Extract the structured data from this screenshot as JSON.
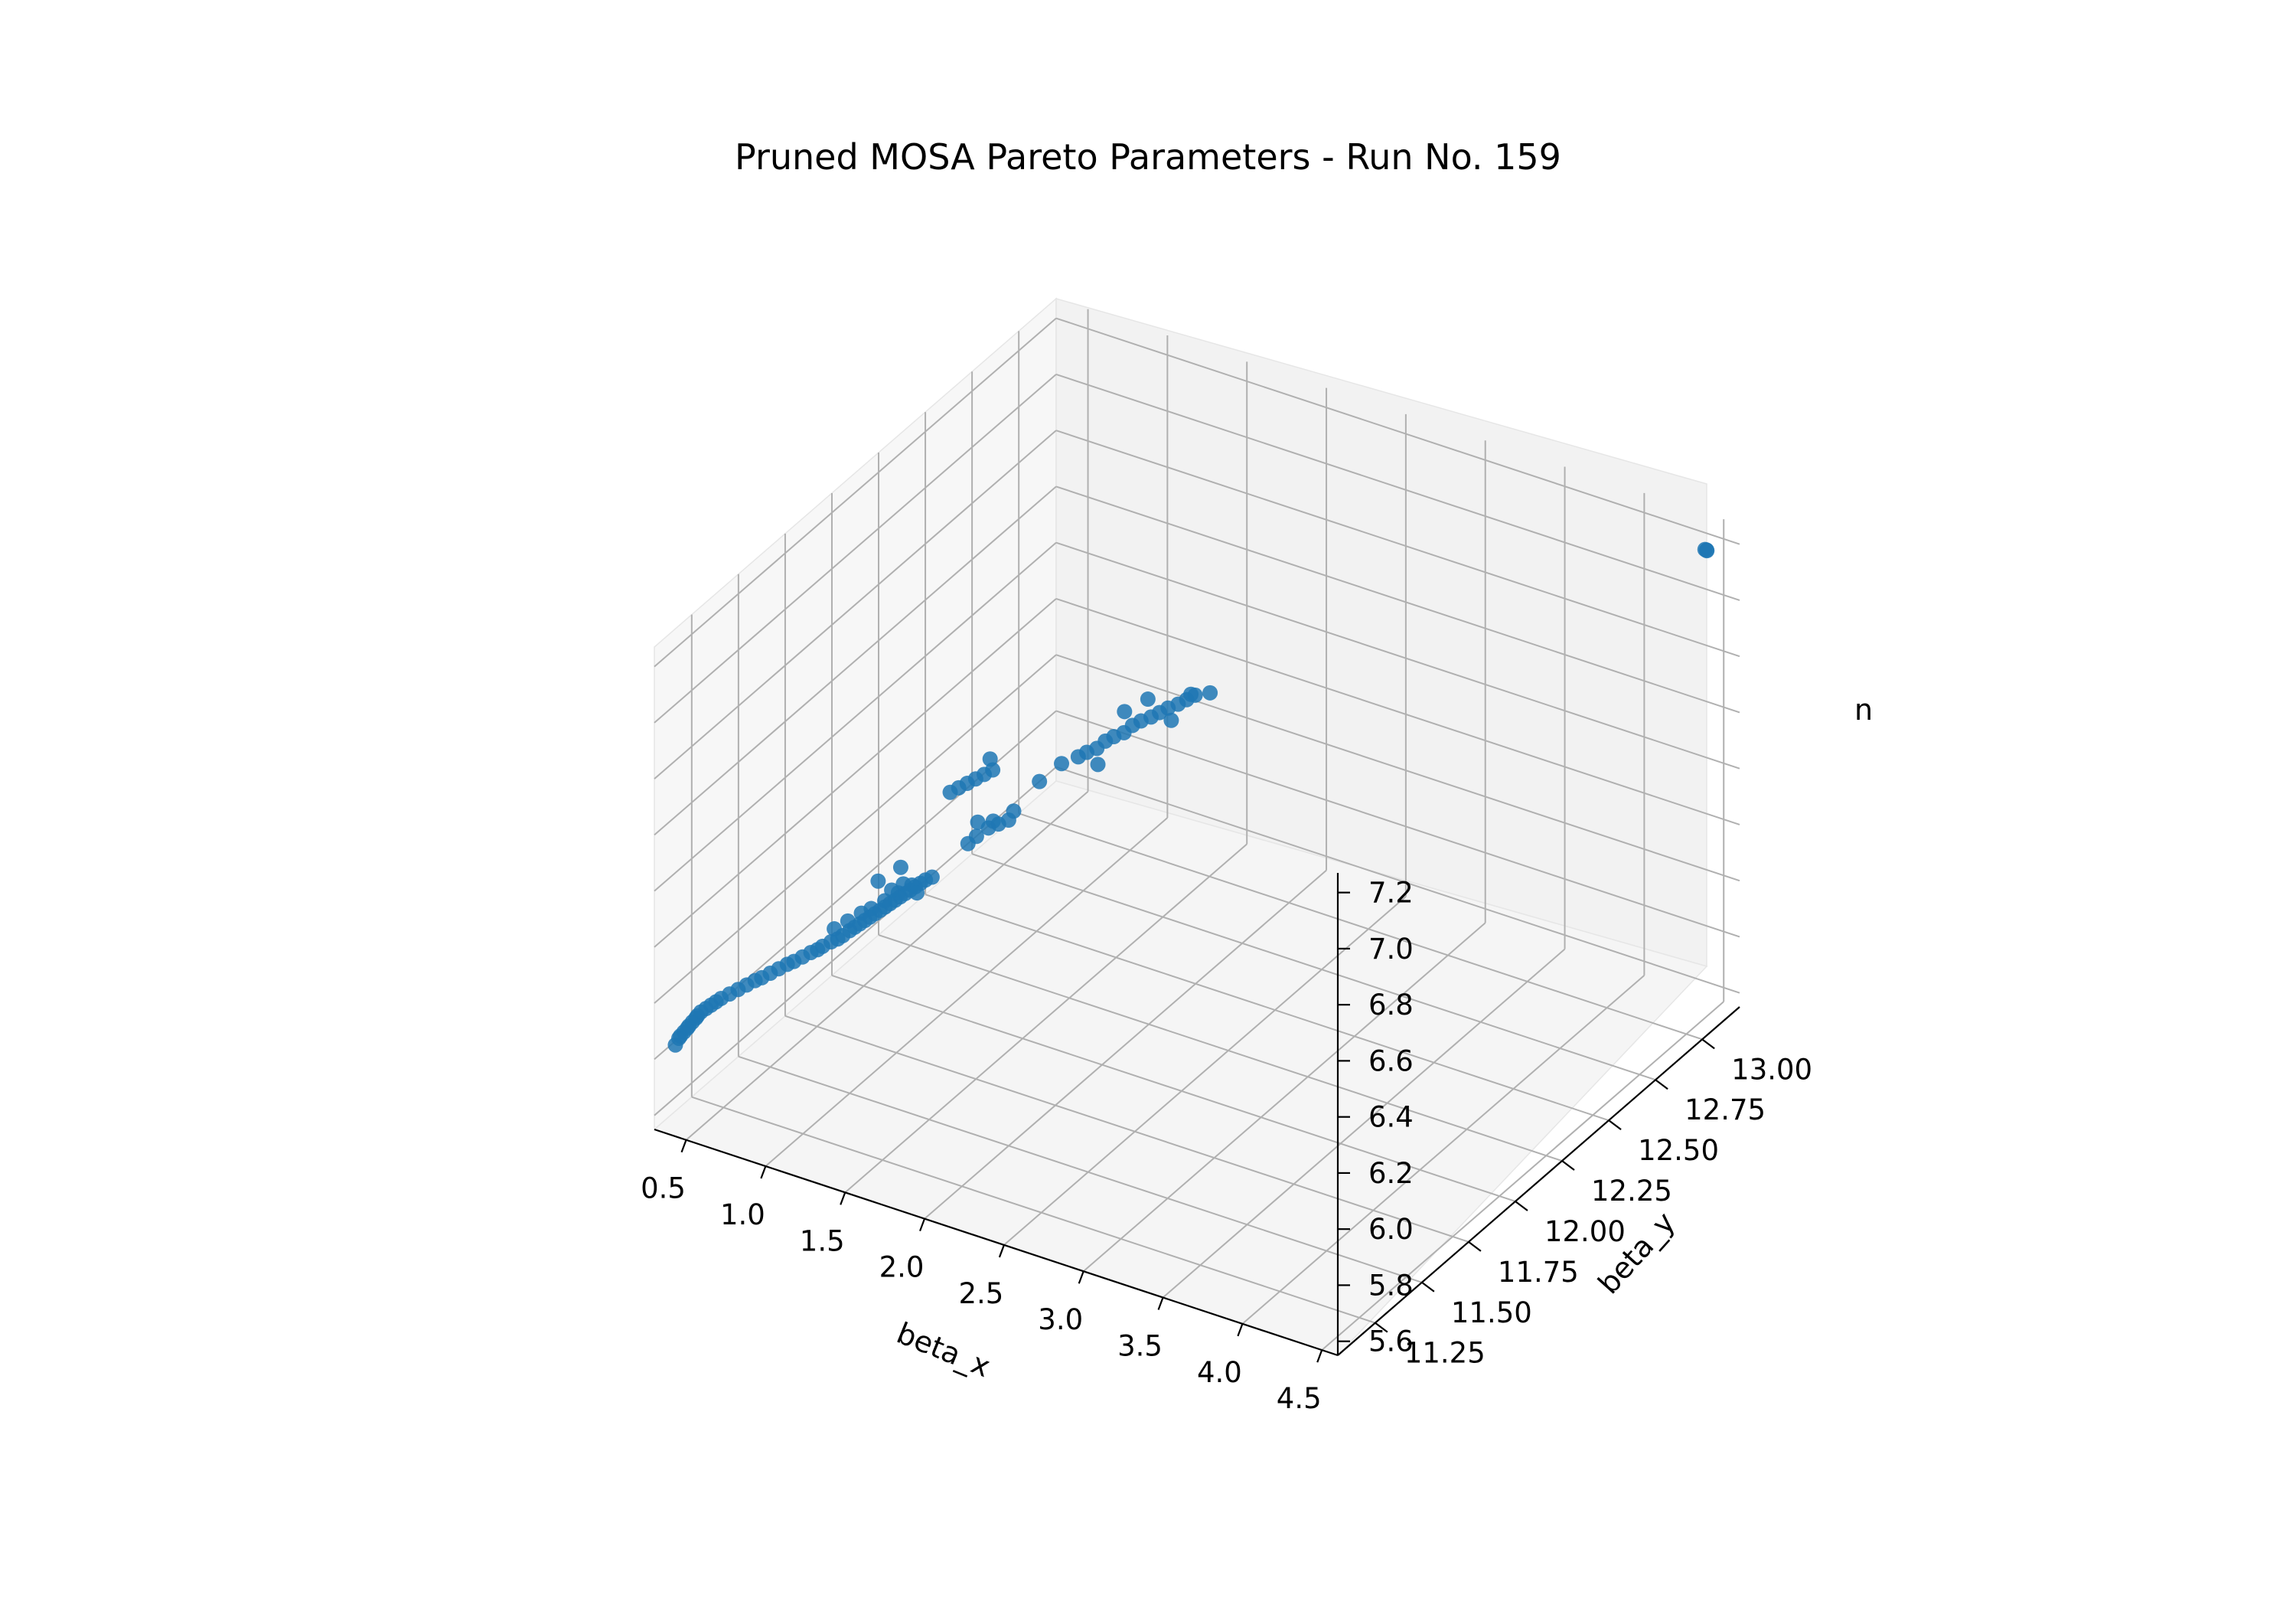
{
  "chart_data": {
    "type": "scatter",
    "projection": "3d",
    "title": "Pruned MOSA Pareto Parameters - Run No. 159",
    "xlabel": "beta_x",
    "ylabel": "beta_y",
    "zlabel": "n",
    "xlim": [
      0.3,
      4.6
    ],
    "ylim": [
      11.05,
      13.2
    ],
    "zlim": [
      5.55,
      7.27
    ],
    "xticks": [
      0.5,
      1.0,
      1.5,
      2.0,
      2.5,
      3.0,
      3.5,
      4.0,
      4.5
    ],
    "xtick_labels": [
      "0.5",
      "1.0",
      "1.5",
      "2.0",
      "2.5",
      "3.0",
      "3.5",
      "4.0",
      "4.5"
    ],
    "yticks": [
      11.25,
      11.5,
      11.75,
      12.0,
      12.25,
      12.5,
      12.75,
      13.0
    ],
    "ytick_labels": [
      "11.25",
      "11.50",
      "11.75",
      "12.00",
      "12.25",
      "12.50",
      "12.75",
      "13.00"
    ],
    "zticks": [
      5.6,
      5.8,
      6.0,
      6.2,
      6.4,
      6.6,
      6.8,
      7.0,
      7.2
    ],
    "ztick_labels": [
      "5.6",
      "5.8",
      "6.0",
      "6.2",
      "6.4",
      "6.6",
      "6.8",
      "7.0",
      "7.2"
    ],
    "grid": true,
    "marker_color": "#1f77b4",
    "series": [
      {
        "points": [
          [
            0.35,
            11.12,
            5.82
          ],
          [
            0.36,
            11.13,
            5.84
          ],
          [
            0.37,
            11.13,
            5.85
          ],
          [
            0.38,
            11.14,
            5.86
          ],
          [
            0.39,
            11.15,
            5.87
          ],
          [
            0.4,
            11.15,
            5.88
          ],
          [
            0.41,
            11.16,
            5.89
          ],
          [
            0.42,
            11.17,
            5.9
          ],
          [
            0.43,
            11.17,
            5.91
          ],
          [
            0.44,
            11.18,
            5.92
          ],
          [
            0.46,
            11.19,
            5.93
          ],
          [
            0.48,
            11.2,
            5.94
          ],
          [
            0.5,
            11.21,
            5.95
          ],
          [
            0.52,
            11.22,
            5.96
          ],
          [
            0.55,
            11.24,
            5.97
          ],
          [
            0.58,
            11.26,
            5.98
          ],
          [
            0.61,
            11.28,
            5.99
          ],
          [
            0.64,
            11.3,
            6.0
          ],
          [
            0.67,
            11.31,
            6.01
          ],
          [
            0.7,
            11.33,
            6.02
          ],
          [
            0.73,
            11.35,
            6.03
          ],
          [
            0.76,
            11.37,
            6.04
          ],
          [
            0.79,
            11.38,
            6.05
          ],
          [
            0.82,
            11.4,
            6.06
          ],
          [
            0.85,
            11.42,
            6.07
          ],
          [
            0.88,
            11.43,
            6.08
          ],
          [
            0.9,
            11.44,
            6.09
          ],
          [
            0.93,
            11.46,
            6.1
          ],
          [
            0.96,
            11.47,
            6.11
          ],
          [
            0.98,
            11.48,
            6.12
          ],
          [
            1.0,
            11.5,
            6.13
          ],
          [
            1.02,
            11.51,
            6.14
          ],
          [
            1.04,
            11.52,
            6.15
          ],
          [
            1.06,
            11.53,
            6.16
          ],
          [
            1.08,
            11.54,
            6.17
          ],
          [
            1.1,
            11.55,
            6.18
          ],
          [
            1.12,
            11.56,
            6.19
          ],
          [
            1.14,
            11.57,
            6.2
          ],
          [
            1.16,
            11.58,
            6.21
          ],
          [
            1.18,
            11.59,
            6.22
          ],
          [
            1.2,
            11.6,
            6.23
          ],
          [
            1.22,
            11.61,
            6.24
          ],
          [
            1.24,
            11.62,
            6.25
          ],
          [
            1.26,
            11.63,
            6.26
          ],
          [
            1.28,
            11.64,
            6.27
          ],
          [
            1.3,
            11.65,
            6.28
          ],
          [
            1.1,
            11.53,
            6.21
          ],
          [
            1.15,
            11.56,
            6.23
          ],
          [
            1.2,
            11.59,
            6.25
          ],
          [
            1.25,
            11.62,
            6.27
          ],
          [
            1.05,
            11.52,
            6.19
          ],
          [
            0.95,
            11.46,
            6.15
          ],
          [
            1.0,
            11.49,
            6.17
          ],
          [
            1.17,
            11.58,
            6.26
          ],
          [
            1.22,
            11.6,
            6.28
          ],
          [
            1.12,
            11.55,
            6.3
          ],
          [
            1.27,
            11.63,
            6.24
          ],
          [
            1.33,
            11.66,
            6.29
          ],
          [
            1.18,
            11.62,
            6.32
          ],
          [
            1.45,
            11.75,
            6.38
          ],
          [
            1.48,
            11.77,
            6.4
          ],
          [
            1.52,
            11.8,
            6.42
          ],
          [
            1.56,
            11.82,
            6.43
          ],
          [
            1.6,
            11.84,
            6.44
          ],
          [
            1.55,
            11.8,
            6.45
          ],
          [
            1.5,
            11.76,
            6.46
          ],
          [
            1.62,
            11.85,
            6.47
          ],
          [
            1.35,
            11.74,
            6.55
          ],
          [
            1.38,
            11.76,
            6.56
          ],
          [
            1.41,
            11.78,
            6.57
          ],
          [
            1.44,
            11.8,
            6.58
          ],
          [
            1.47,
            11.82,
            6.59
          ],
          [
            1.5,
            11.84,
            6.6
          ],
          [
            1.46,
            11.86,
            6.62
          ],
          [
            1.7,
            11.92,
            6.55
          ],
          [
            1.78,
            11.97,
            6.6
          ],
          [
            1.85,
            12.0,
            6.62
          ],
          [
            1.88,
            12.02,
            6.63
          ],
          [
            1.92,
            12.04,
            6.64
          ],
          [
            1.95,
            12.06,
            6.66
          ],
          [
            1.98,
            12.08,
            6.67
          ],
          [
            2.02,
            12.1,
            6.68
          ],
          [
            2.05,
            12.12,
            6.7
          ],
          [
            2.08,
            12.14,
            6.71
          ],
          [
            2.12,
            12.16,
            6.72
          ],
          [
            2.15,
            12.18,
            6.73
          ],
          [
            2.18,
            12.2,
            6.74
          ],
          [
            2.22,
            12.22,
            6.75
          ],
          [
            2.25,
            12.24,
            6.76
          ],
          [
            2.28,
            12.26,
            6.77
          ],
          [
            2.1,
            12.16,
            6.78
          ],
          [
            2.2,
            12.2,
            6.7
          ],
          [
            2.0,
            12.12,
            6.74
          ],
          [
            2.3,
            12.22,
            6.8
          ],
          [
            1.95,
            12.02,
            6.6
          ],
          [
            2.35,
            12.28,
            6.78
          ]
        ]
      },
      {
        "points": [
          [
            4.5,
            13.1,
            7.22
          ],
          [
            4.51,
            13.1,
            7.22
          ],
          [
            4.5,
            13.11,
            7.21
          ]
        ]
      }
    ]
  }
}
